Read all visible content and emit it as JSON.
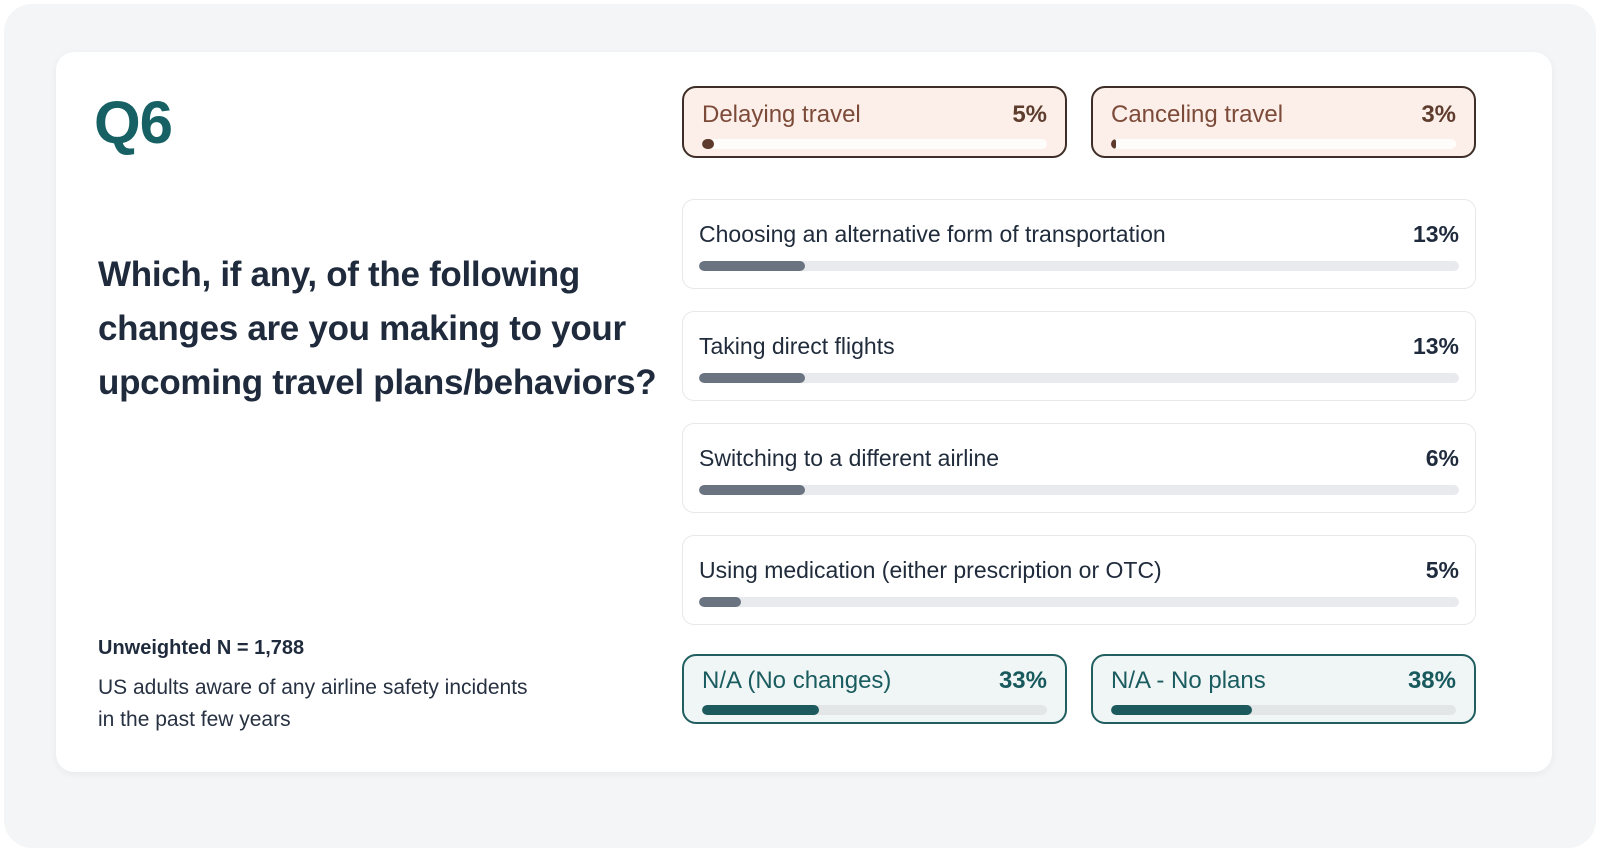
{
  "page": {
    "question_id": "Q6",
    "question": "Which, if any, of the following changes are you making to your upcoming travel plans/behaviors?",
    "sample_size": "Unweighted N = 1,788",
    "population": "US adults aware of any airline safety incidents in the past few years"
  },
  "colors": {
    "accent_teal": "#176164",
    "accent_brown": "#5D3A2B",
    "navy_text": "#1F2B3C",
    "bar_fill_gray": "#6A7380",
    "bar_track_gray": "#E8EAED",
    "peach_bg": "#FCEFE9",
    "teal_bg": "#F0F6F5",
    "panel_bg": "#F4F5F6"
  },
  "highlight_top": [
    {
      "label": "Delaying travel",
      "pct_label": "5%",
      "value": 5,
      "bar_pct": 3.5
    },
    {
      "label": "Canceling travel",
      "pct_label": "3%",
      "value": 3,
      "bar_pct": 1.5
    }
  ],
  "bars": [
    {
      "label": "Choosing an alternative form of transportation",
      "pct_label": "13%",
      "value": 13,
      "bar_pct": 14
    },
    {
      "label": "Taking direct flights",
      "pct_label": "13%",
      "value": 13,
      "bar_pct": 14
    },
    {
      "label": "Switching to a different airline",
      "pct_label": "6%",
      "value": 6,
      "bar_pct": 14
    },
    {
      "label": "Using medication (either prescription or OTC)",
      "pct_label": "5%",
      "value": 5,
      "bar_pct": 5.5
    }
  ],
  "highlight_bottom": [
    {
      "label": "N/A  (No changes)",
      "pct_label": "33%",
      "value": 33,
      "bar_pct": 34
    },
    {
      "label": "N/A - No plans",
      "pct_label": "38%",
      "value": 38,
      "bar_pct": 41
    }
  ],
  "chart_data": {
    "type": "bar",
    "title": "Which, if any, of the following changes are you making to your upcoming travel plans/behaviors?",
    "categories": [
      "Delaying travel",
      "Canceling travel",
      "Choosing an alternative form of transportation",
      "Taking direct flights",
      "Switching to a different airline",
      "Using medication (either prescription or OTC)",
      "N/A (No changes)",
      "N/A - No plans"
    ],
    "values": [
      5,
      3,
      13,
      13,
      6,
      5,
      33,
      38
    ],
    "unit": "%",
    "xlabel": "",
    "ylabel": "",
    "annotations": [
      "Unweighted N = 1,788",
      "US adults aware of any airline safety incidents in the past few years"
    ],
    "legend": "none",
    "grid": false
  }
}
